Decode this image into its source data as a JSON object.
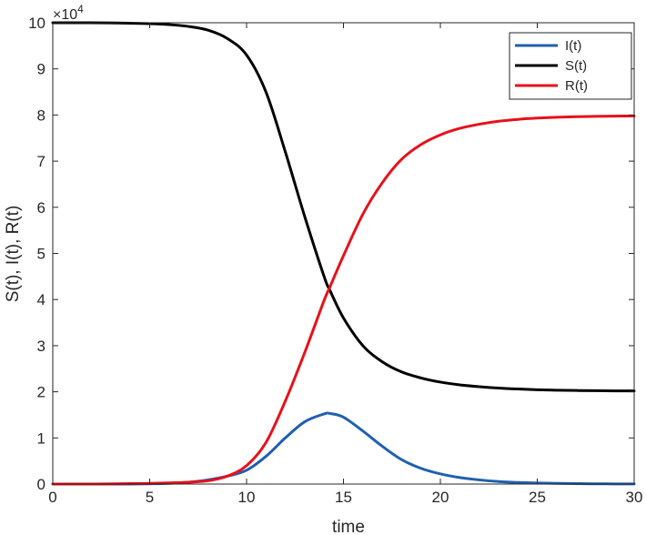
{
  "chart_data": {
    "type": "line",
    "title": "",
    "xlabel": "time",
    "ylabel": "S(t), I(t), R(t)",
    "xlim": [
      0,
      30
    ],
    "ylim": [
      0,
      100000
    ],
    "y_exponent_base": "×10",
    "y_exponent_power": "4",
    "x_ticks": [
      0,
      5,
      10,
      15,
      20,
      25,
      30
    ],
    "x_tick_labels": [
      "0",
      "5",
      "10",
      "15",
      "20",
      "25",
      "30"
    ],
    "y_ticks": [
      0,
      10000,
      20000,
      30000,
      40000,
      50000,
      60000,
      70000,
      80000,
      90000,
      100000
    ],
    "y_tick_labels": [
      "0",
      "1",
      "2",
      "3",
      "4",
      "5",
      "6",
      "7",
      "8",
      "9",
      "10"
    ],
    "grid": false,
    "legend_position": "top-right",
    "x": [
      0,
      2,
      4,
      5,
      6,
      7,
      8,
      9,
      10,
      11,
      12,
      13,
      14,
      14.3,
      15,
      16,
      17,
      18,
      19,
      20,
      21,
      22,
      23,
      24,
      25,
      26,
      27,
      28,
      29,
      30
    ],
    "series": [
      {
        "name": "I(t)",
        "color": "#1f5fb0",
        "values": [
          0,
          0,
          0,
          50,
          150,
          400,
          900,
          1700,
          3000,
          6000,
          10000,
          13500,
          15200,
          15300,
          14500,
          11500,
          8200,
          5300,
          3400,
          2200,
          1400,
          900,
          550,
          350,
          220,
          140,
          90,
          55,
          35,
          20
        ]
      },
      {
        "name": "S(t)",
        "color": "#000000",
        "values": [
          100000,
          100000,
          99900,
          99800,
          99600,
          99200,
          98400,
          96600,
          93000,
          85000,
          72000,
          58000,
          45000,
          42000,
          36000,
          30000,
          26500,
          24300,
          23000,
          22100,
          21500,
          21100,
          20800,
          20600,
          20450,
          20350,
          20280,
          20230,
          20200,
          20200
        ]
      },
      {
        "name": "R(t)",
        "color": "#e8101a",
        "values": [
          0,
          0,
          100,
          150,
          250,
          400,
          700,
          1700,
          4000,
          9000,
          18000,
          28500,
          39800,
          42700,
          49500,
          58500,
          65300,
          70400,
          73600,
          75700,
          77100,
          78000,
          78650,
          79050,
          79330,
          79510,
          79630,
          79715,
          79765,
          79780
        ]
      }
    ]
  }
}
